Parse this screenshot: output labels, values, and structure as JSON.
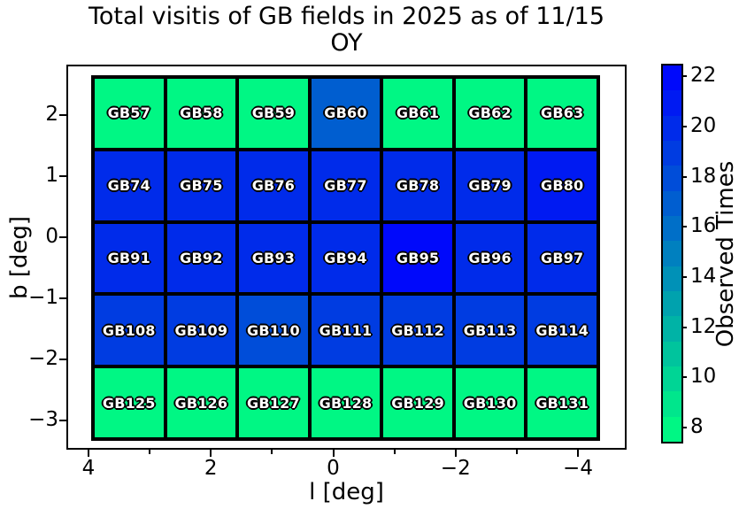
{
  "title": {
    "line1": "Total visitis of GB fields in 2025 as of 11/15",
    "line2": "OY"
  },
  "axes": {
    "xlabel": "l [deg]",
    "ylabel": "b [deg]",
    "x_ticks": [
      "4",
      "2",
      "0",
      "−2",
      "−4"
    ],
    "y_ticks": [
      "2",
      "1",
      "0",
      "−1",
      "−2",
      "−3"
    ]
  },
  "colorbar": {
    "label": "Observed Times",
    "tick_labels": [
      "22",
      "20",
      "18",
      "16",
      "14",
      "12",
      "10",
      "8"
    ],
    "levels_top_to_bottom": [
      {
        "value": 22,
        "color": "#0009FB"
      },
      {
        "value": 21,
        "color": "#001AF2"
      },
      {
        "value": 20,
        "color": "#002BEA"
      },
      {
        "value": 19,
        "color": "#003CE1"
      },
      {
        "value": 18,
        "color": "#004DD9"
      },
      {
        "value": 17,
        "color": "#005ED0"
      },
      {
        "value": 16,
        "color": "#006FC8"
      },
      {
        "value": 15,
        "color": "#0080BF"
      },
      {
        "value": 14,
        "color": "#0091B7"
      },
      {
        "value": 13,
        "color": "#00A2AE"
      },
      {
        "value": 12,
        "color": "#00B3A6"
      },
      {
        "value": 11,
        "color": "#00C49D"
      },
      {
        "value": 10,
        "color": "#00D595"
      },
      {
        "value": 9,
        "color": "#00E68C"
      },
      {
        "value": 8,
        "color": "#00F784"
      }
    ]
  },
  "chart_data": {
    "type": "heatmap",
    "title": "Total visitis of GB fields in 2025 as of 11/15 OY",
    "xlabel": "l [deg]",
    "ylabel": "b [deg]",
    "colorbar_label": "Observed Times",
    "colorbar_ticks": [
      8,
      10,
      12,
      14,
      16,
      18,
      20,
      22
    ],
    "value_range": [
      8,
      22
    ],
    "colormap": "winter_r (spring green #00F784 at 8 → blue #0009FB at 22)",
    "x_tick_labels": [
      "4",
      "2",
      "0",
      "−2",
      "−4"
    ],
    "y_tick_labels": [
      "2",
      "1",
      "0",
      "−1",
      "−2",
      "−3"
    ],
    "grid": {
      "rows": 5,
      "cols": 7
    },
    "cells": [
      {
        "label": "GB57",
        "value": 8,
        "color": "#00F784"
      },
      {
        "label": "GB58",
        "value": 8,
        "color": "#00F784"
      },
      {
        "label": "GB59",
        "value": 8,
        "color": "#00F784"
      },
      {
        "label": "GB60",
        "value": 17,
        "color": "#005ED0"
      },
      {
        "label": "GB61",
        "value": 8,
        "color": "#00F784"
      },
      {
        "label": "GB62",
        "value": 8,
        "color": "#00F784"
      },
      {
        "label": "GB63",
        "value": 8,
        "color": "#00F784"
      },
      {
        "label": "GB74",
        "value": 20,
        "color": "#002BEA"
      },
      {
        "label": "GB75",
        "value": 20,
        "color": "#002BEA"
      },
      {
        "label": "GB76",
        "value": 20,
        "color": "#002BEA"
      },
      {
        "label": "GB77",
        "value": 20,
        "color": "#002BEA"
      },
      {
        "label": "GB78",
        "value": 20,
        "color": "#002BEA"
      },
      {
        "label": "GB79",
        "value": 20,
        "color": "#002BEA"
      },
      {
        "label": "GB80",
        "value": 21,
        "color": "#001AF2"
      },
      {
        "label": "GB91",
        "value": 20,
        "color": "#002BEA"
      },
      {
        "label": "GB92",
        "value": 20,
        "color": "#002BEA"
      },
      {
        "label": "GB93",
        "value": 20,
        "color": "#002BEA"
      },
      {
        "label": "GB94",
        "value": 20,
        "color": "#002BEA"
      },
      {
        "label": "GB95",
        "value": 22,
        "color": "#0009FB"
      },
      {
        "label": "GB96",
        "value": 20,
        "color": "#002BEA"
      },
      {
        "label": "GB97",
        "value": 20,
        "color": "#002BEA"
      },
      {
        "label": "GB108",
        "value": 19,
        "color": "#003CE1"
      },
      {
        "label": "GB109",
        "value": 19,
        "color": "#003CE1"
      },
      {
        "label": "GB110",
        "value": 18,
        "color": "#004DD9"
      },
      {
        "label": "GB111",
        "value": 19,
        "color": "#003CE1"
      },
      {
        "label": "GB112",
        "value": 19,
        "color": "#003CE1"
      },
      {
        "label": "GB113",
        "value": 19,
        "color": "#003CE1"
      },
      {
        "label": "GB114",
        "value": 19,
        "color": "#003CE1"
      },
      {
        "label": "GB125",
        "value": 8,
        "color": "#00F784"
      },
      {
        "label": "GB126",
        "value": 8,
        "color": "#00F784"
      },
      {
        "label": "GB127",
        "value": 8,
        "color": "#00F784"
      },
      {
        "label": "GB128",
        "value": 8,
        "color": "#00F784"
      },
      {
        "label": "GB129",
        "value": 8,
        "color": "#00F784"
      },
      {
        "label": "GB130",
        "value": 8,
        "color": "#00F784"
      },
      {
        "label": "GB131",
        "value": 8,
        "color": "#00F784"
      }
    ]
  }
}
